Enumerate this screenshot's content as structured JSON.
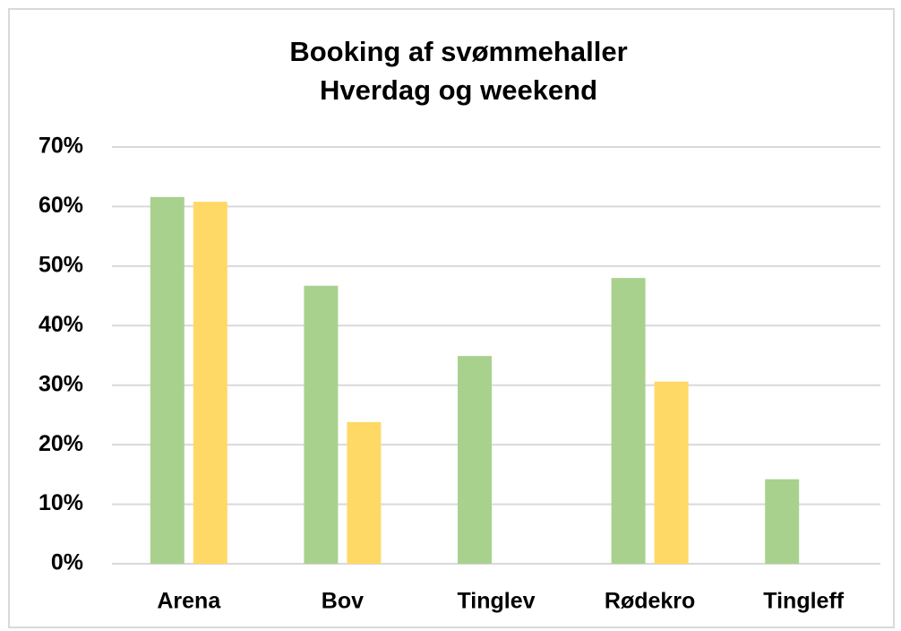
{
  "chart_data": {
    "type": "bar",
    "title": [
      "Booking af svømmehaller",
      "Hverdag og weekend"
    ],
    "categories": [
      "Arena",
      "Bov",
      "Tinglev",
      "Rødekro",
      "Tingleff"
    ],
    "series": [
      {
        "color": "#a9d18e",
        "values": [
          61.6,
          46.7,
          34.9,
          48.0,
          14.2
        ]
      },
      {
        "color": "#ffd966",
        "values": [
          60.8,
          23.8,
          null,
          30.6,
          null
        ]
      }
    ],
    "ylim": [
      0,
      70
    ],
    "yticks": [
      {
        "value": 0,
        "label": "0%"
      },
      {
        "value": 10,
        "label": "10%"
      },
      {
        "value": 20,
        "label": "20%"
      },
      {
        "value": 30,
        "label": "30%"
      },
      {
        "value": 40,
        "label": "40%"
      },
      {
        "value": 50,
        "label": "50%"
      },
      {
        "value": 60,
        "label": "60%"
      },
      {
        "value": 70,
        "label": "70%"
      }
    ],
    "grid": true
  }
}
